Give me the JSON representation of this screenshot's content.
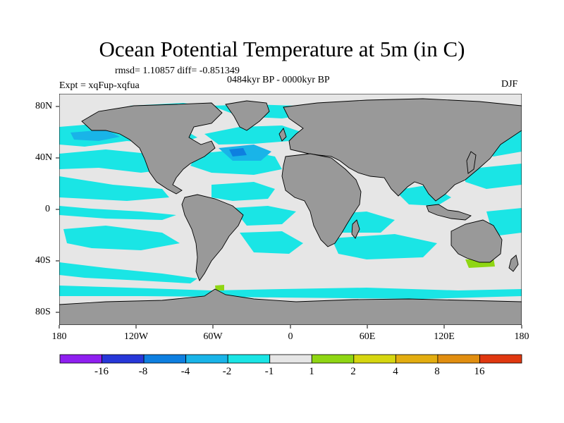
{
  "title": "Ocean Potential Temperature at 5m (in C)",
  "stats_line": "rmsd= 1.10857 diff= -0.851349",
  "period": "0484kyr BP - 0000kyr BP",
  "experiment": "Expt = xqFup-xqfua",
  "season": "DJF",
  "colors": {
    "land": "#999999",
    "neutral": "#e6e6e6",
    "cyan": "#1ae5e5",
    "light_blue": "#19b4e8",
    "blue": "#0e7fe0",
    "deep_blue": "#2737d8",
    "purple": "#8f1ff0",
    "green": "#8fd613",
    "yellow": "#d6d610",
    "orange_yellow": "#e3ad10",
    "orange": "#e18e10",
    "dark_orange": "#e06010",
    "red": "#e03810"
  },
  "axes": {
    "lat_ticks": [
      "80N",
      "40N",
      "0",
      "40S",
      "80S"
    ],
    "lon_ticks": [
      "180",
      "120W",
      "60W",
      "0",
      "60E",
      "120E",
      "180"
    ]
  },
  "colorbar": {
    "labels": [
      "-16",
      "-8",
      "-4",
      "-2",
      "-1",
      "1",
      "2",
      "4",
      "8",
      "16"
    ],
    "colors": [
      "#8f1ff0",
      "#2737d8",
      "#0e7fe0",
      "#19b4e8",
      "#1ae5e5",
      "#e6e6e6",
      "#8fd613",
      "#d6d610",
      "#e3ad10",
      "#e18e10",
      "#e03810"
    ]
  }
}
